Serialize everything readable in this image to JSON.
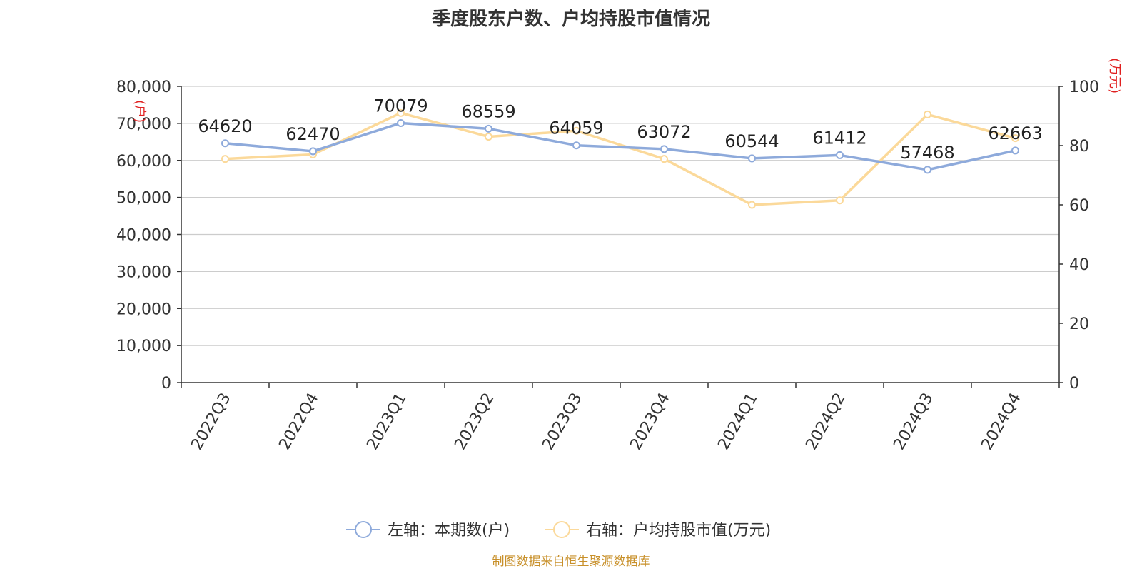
{
  "chart_data": {
    "type": "line",
    "title": "季度股东户数、户均持股市值情况",
    "categories": [
      "2022Q3",
      "2022Q4",
      "2023Q1",
      "2023Q2",
      "2023Q3",
      "2023Q4",
      "2024Q1",
      "2024Q2",
      "2024Q3",
      "2024Q4"
    ],
    "y_left": {
      "label": "(户)",
      "min": 0,
      "max": 80000,
      "ticks": [
        "0",
        "10,000",
        "20,000",
        "30,000",
        "40,000",
        "50,000",
        "60,000",
        "70,000",
        "80,000"
      ]
    },
    "y_right": {
      "label": "(万元)",
      "min": 0,
      "max": 100,
      "ticks": [
        "0",
        "20",
        "40",
        "60",
        "80",
        "100"
      ]
    },
    "series": [
      {
        "name": "左轴：本期数(户)",
        "axis": "left",
        "color": "#8eaadb",
        "values": [
          64620,
          62470,
          70079,
          68559,
          64059,
          63072,
          60544,
          61412,
          57468,
          62663
        ]
      },
      {
        "name": "右轴：户均持股市值(万元)",
        "axis": "right",
        "color": "#fbd99a",
        "values": [
          75.5,
          77,
          91,
          83,
          85,
          75.5,
          60,
          61.5,
          90.5,
          82.5
        ]
      }
    ],
    "grid": true,
    "legend": "bottom-center",
    "data_labels": "left-series"
  },
  "source": "制图数据来自恒生聚源数据库"
}
